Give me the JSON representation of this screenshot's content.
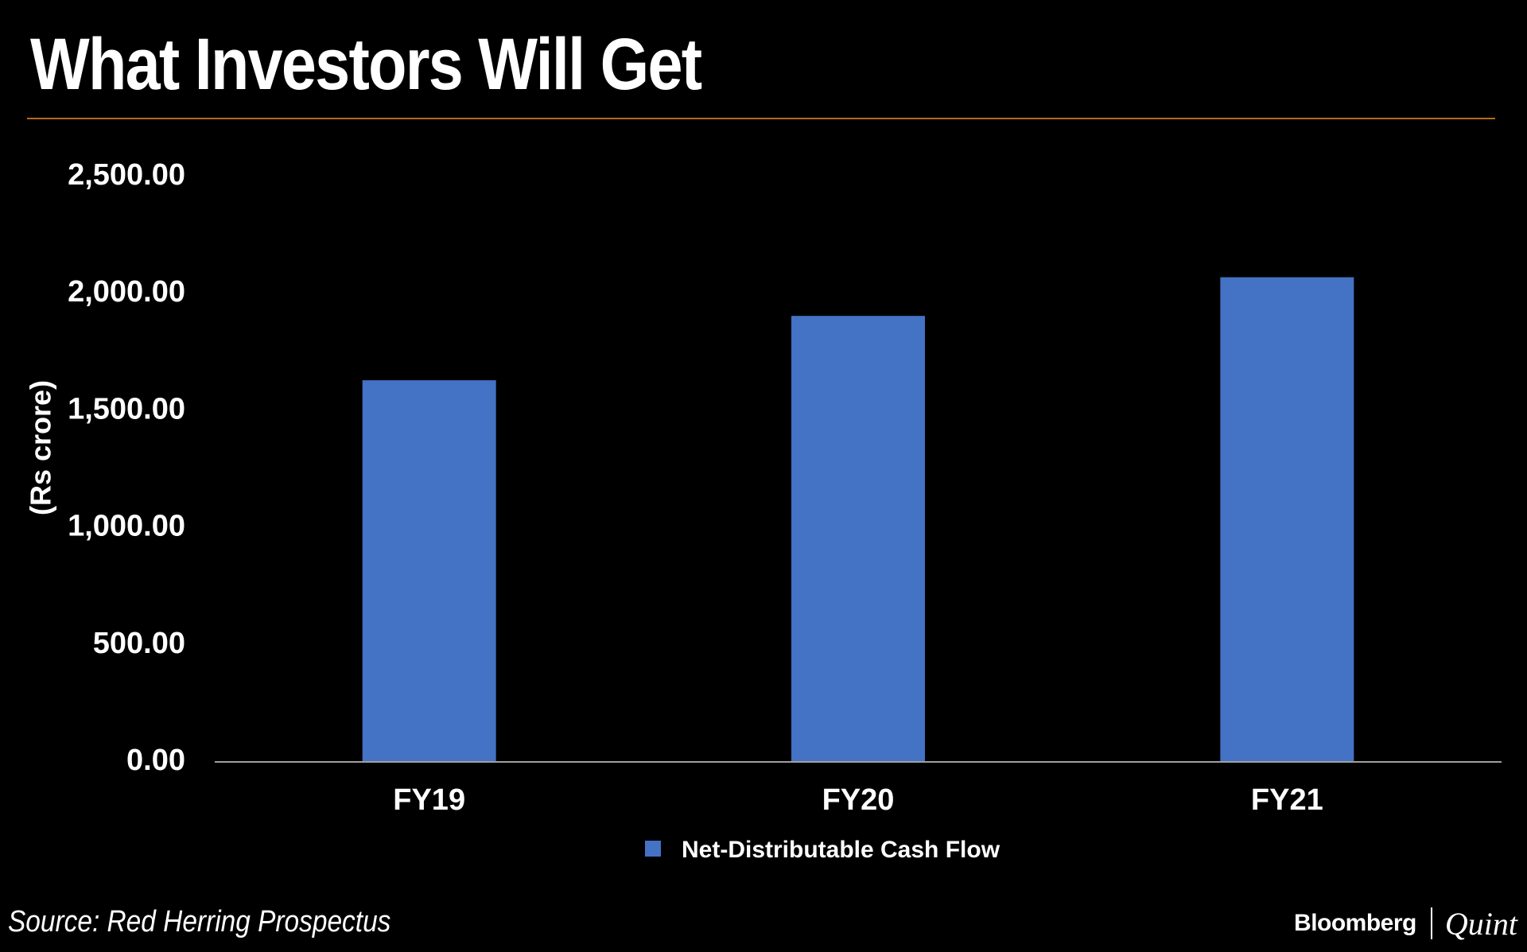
{
  "title": "What Investors Will Get",
  "source": "Source: Red Herring Prospectus",
  "brand": {
    "name": "Bloomberg",
    "suffix": "Quint"
  },
  "colors": {
    "background": "#000000",
    "bar": "#4472c4",
    "title_rule": "#b86a1e",
    "baseline": "#a0a0a0",
    "text": "#ffffff"
  },
  "chart_data": {
    "type": "bar",
    "title": "What Investors Will Get",
    "categories": [
      "FY19",
      "FY20",
      "FY21"
    ],
    "series": [
      {
        "name": "Net-Distributable Cash Flow",
        "values": [
          1630,
          1905,
          2070
        ]
      }
    ],
    "ylabel": "(Rs crore)",
    "xlabel": "",
    "ylim": [
      0,
      2500
    ],
    "yticks": [
      0,
      500,
      1000,
      1500,
      2000,
      2500
    ],
    "ytick_labels": [
      "0.00",
      "500.00",
      "1,000.00",
      "1,500.00",
      "2,000.00",
      "2,500.00"
    ],
    "grid": false,
    "legend": "bottom"
  }
}
